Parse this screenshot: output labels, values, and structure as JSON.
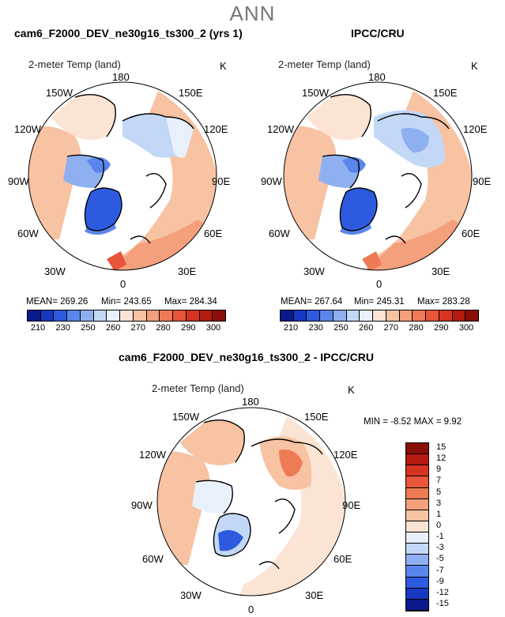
{
  "season": "ANN",
  "panels": [
    {
      "title": "cam6_F2000_DEV_ne30g16_ts300_2 (yrs 1)",
      "name": "2-meter Temp (land)",
      "units": "K",
      "mean_label": "MEAN= 269.26",
      "min_label": "Min= 243.65",
      "max_label": "Max= 284.34"
    },
    {
      "title": "IPCC/CRU",
      "name": "2-meter Temp (land)",
      "units": "K",
      "mean_label": "MEAN= 267.64",
      "min_label": "Min= 245.31",
      "max_label": "Max= 283.28"
    },
    {
      "title": "cam6_F2000_DEV_ne30g16_ts300_2 - IPCC/CRU",
      "name": "2-meter Temp (land)",
      "units": "K",
      "minmax_label": "MIN = -8.52 MAX = 9.92"
    }
  ],
  "longitudes": [
    "180",
    "150E",
    "120E",
    "90E",
    "60E",
    "30E",
    "0",
    "30W",
    "60W",
    "90W",
    "120W",
    "150W"
  ],
  "abs_colorbar": {
    "ticks": [
      "210",
      "230",
      "250",
      "260",
      "270",
      "280",
      "290",
      "300"
    ],
    "colors": [
      "#0a1a8a",
      "#1838c0",
      "#2e5ae0",
      "#5a86ec",
      "#8fb0f0",
      "#c2d8f6",
      "#e8f0fb",
      "#fbe4d4",
      "#f7c3a3",
      "#f4a07c",
      "#ef7b55",
      "#e8553a",
      "#d63421",
      "#b51a10",
      "#8a0e08"
    ]
  },
  "diff_colorbar": {
    "labels": [
      "15",
      "12",
      "9",
      "7",
      "5",
      "3",
      "1",
      "0",
      "-1",
      "-3",
      "-5",
      "-7",
      "-9",
      "-12",
      "-15"
    ],
    "colors": [
      "#8a0e08",
      "#b51a10",
      "#d63421",
      "#e8553a",
      "#ef7b55",
      "#f4a07c",
      "#f7c3a3",
      "#fbe4d4",
      "#e8f0fb",
      "#c2d8f6",
      "#8fb0f0",
      "#5a86ec",
      "#2e5ae0",
      "#1838c0",
      "#0a1a8a"
    ]
  },
  "chart_data": [
    {
      "type": "heatmap",
      "title": "cam6_F2000_DEV_ne30g16_ts300_2 (yrs 1)",
      "variable": "2-meter Temp (land)",
      "units": "K",
      "projection": "north polar stereographic",
      "mean": 269.26,
      "min": 243.65,
      "max": 284.34,
      "levels": [
        210,
        230,
        250,
        260,
        270,
        280,
        290,
        300
      ]
    },
    {
      "type": "heatmap",
      "title": "IPCC/CRU",
      "variable": "2-meter Temp (land)",
      "units": "K",
      "projection": "north polar stereographic",
      "mean": 267.64,
      "min": 245.31,
      "max": 283.28,
      "levels": [
        210,
        230,
        250,
        260,
        270,
        280,
        290,
        300
      ]
    },
    {
      "type": "heatmap",
      "title": "cam6_F2000_DEV_ne30g16_ts300_2 - IPCC/CRU",
      "variable": "2-meter Temp (land)",
      "units": "K",
      "projection": "north polar stereographic",
      "min": -8.52,
      "max": 9.92,
      "levels": [
        -15,
        -12,
        -9,
        -7,
        -5,
        -3,
        -1,
        0,
        1,
        3,
        5,
        7,
        9,
        12,
        15
      ]
    }
  ]
}
